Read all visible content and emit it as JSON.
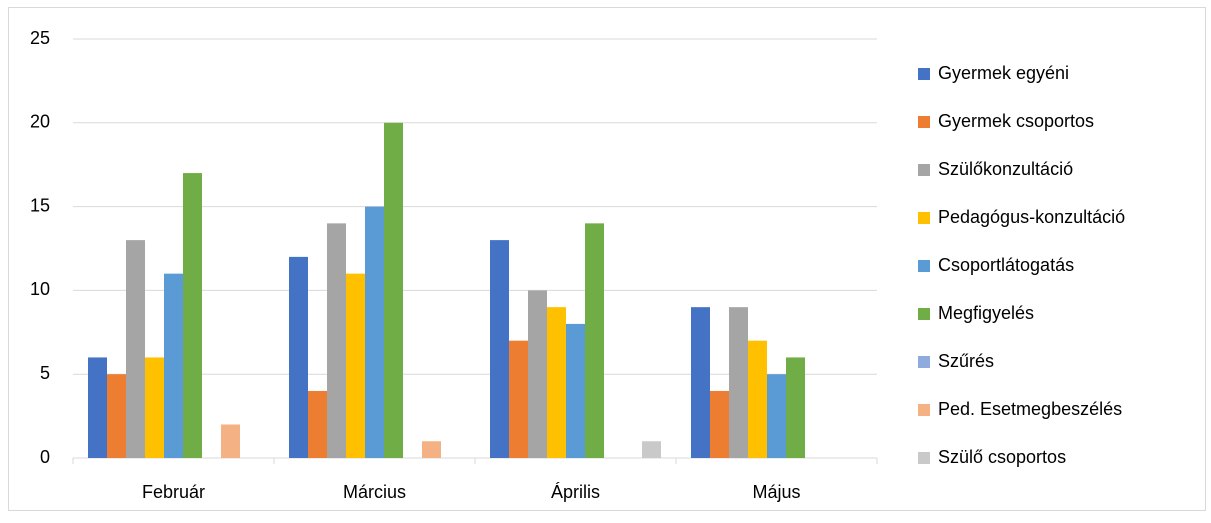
{
  "chart_data": {
    "type": "bar",
    "categories": [
      "Február",
      "Március",
      "Április",
      "Május"
    ],
    "series": [
      {
        "name": "Gyermek egyéni",
        "color": "#4472c4",
        "values": [
          6,
          12,
          13,
          9
        ]
      },
      {
        "name": "Gyermek csoportos",
        "color": "#ed7d31",
        "values": [
          5,
          4,
          7,
          4
        ]
      },
      {
        "name": "Szülőkonzultáció",
        "color": "#a5a5a5",
        "values": [
          13,
          14,
          10,
          9
        ]
      },
      {
        "name": "Pedagógus-konzultáció",
        "color": "#ffc000",
        "values": [
          6,
          11,
          9,
          7
        ]
      },
      {
        "name": "Csoportlátogatás",
        "color": "#5b9bd5",
        "values": [
          11,
          15,
          8,
          5
        ]
      },
      {
        "name": "Megfigyelés",
        "color": "#70ad47",
        "values": [
          17,
          20,
          14,
          6
        ]
      },
      {
        "name": "Szűrés",
        "color": "#8faadc",
        "values": [
          0,
          0,
          0,
          0
        ]
      },
      {
        "name": "Ped. Esetmegbeszélés",
        "color": "#f4b183",
        "values": [
          2,
          1,
          0,
          0
        ]
      },
      {
        "name": "Szülő csoportos",
        "color": "#c9c9c9",
        "values": [
          0,
          0,
          1,
          0
        ]
      }
    ],
    "ylim": [
      0,
      25
    ],
    "yticks": [
      0,
      5,
      10,
      15,
      20,
      25
    ],
    "grid": true,
    "legend": "right"
  }
}
